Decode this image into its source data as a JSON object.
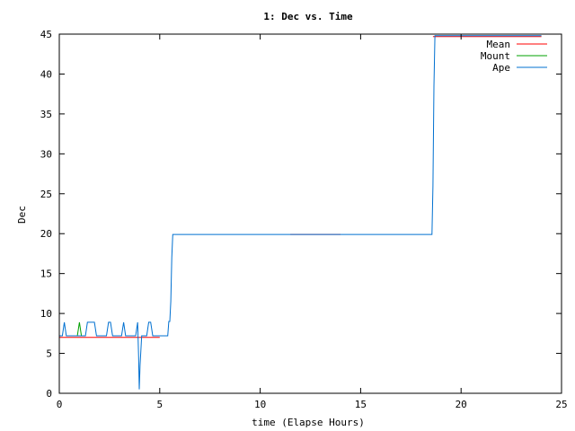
{
  "chart_data": {
    "type": "line",
    "title": "1: Dec vs. Time",
    "xlabel": "time (Elapse Hours)",
    "ylabel": "Dec",
    "xlim": [
      0,
      25
    ],
    "ylim": [
      0,
      45
    ],
    "xticks": [
      0,
      5,
      10,
      15,
      20,
      25
    ],
    "yticks": [
      0,
      5,
      10,
      15,
      20,
      25,
      30,
      35,
      40,
      45
    ],
    "grid": false,
    "legend_position": "top-right",
    "series": [
      {
        "name": "Mean",
        "color": "#ff0000",
        "segments": [
          [
            [
              0,
              7.0
            ],
            [
              5.0,
              7.0
            ]
          ],
          [
            [
              11.5,
              19.9
            ],
            [
              14.0,
              19.9
            ]
          ],
          [
            [
              18.6,
              44.7
            ],
            [
              24.0,
              44.7
            ]
          ]
        ]
      },
      {
        "name": "Mount",
        "color": "#00a000",
        "segments": [
          [
            [
              0.9,
              7.2
            ],
            [
              1.0,
              8.9
            ],
            [
              1.1,
              7.2
            ]
          ]
        ]
      },
      {
        "name": "Ape",
        "color": "#0070d0",
        "segments": [
          [
            [
              0,
              7.2
            ],
            [
              0.15,
              7.2
            ],
            [
              0.25,
              8.9
            ],
            [
              0.35,
              7.2
            ],
            [
              0.9,
              7.2
            ],
            [
              1.0,
              7.2
            ],
            [
              1.3,
              7.2
            ],
            [
              1.4,
              8.9
            ],
            [
              1.75,
              8.9
            ],
            [
              1.85,
              7.2
            ],
            [
              2.35,
              7.2
            ],
            [
              2.45,
              8.9
            ],
            [
              2.55,
              8.9
            ],
            [
              2.65,
              7.2
            ],
            [
              3.1,
              7.2
            ],
            [
              3.2,
              8.9
            ],
            [
              3.3,
              7.2
            ],
            [
              3.8,
              7.2
            ],
            [
              3.9,
              8.9
            ],
            [
              3.95,
              4.5
            ],
            [
              3.98,
              0.5
            ],
            [
              4.02,
              3.5
            ],
            [
              4.1,
              7.2
            ],
            [
              4.35,
              7.2
            ],
            [
              4.45,
              8.9
            ],
            [
              4.55,
              8.9
            ],
            [
              4.65,
              7.2
            ],
            [
              5.4,
              7.2
            ],
            [
              5.45,
              9.0
            ],
            [
              5.5,
              9.0
            ],
            [
              5.55,
              11.5
            ],
            [
              5.6,
              17.0
            ],
            [
              5.65,
              19.9
            ],
            [
              18.55,
              19.9
            ],
            [
              18.6,
              26.0
            ],
            [
              18.65,
              38.5
            ],
            [
              18.7,
              44.8
            ],
            [
              24.0,
              44.8
            ]
          ]
        ]
      }
    ]
  }
}
